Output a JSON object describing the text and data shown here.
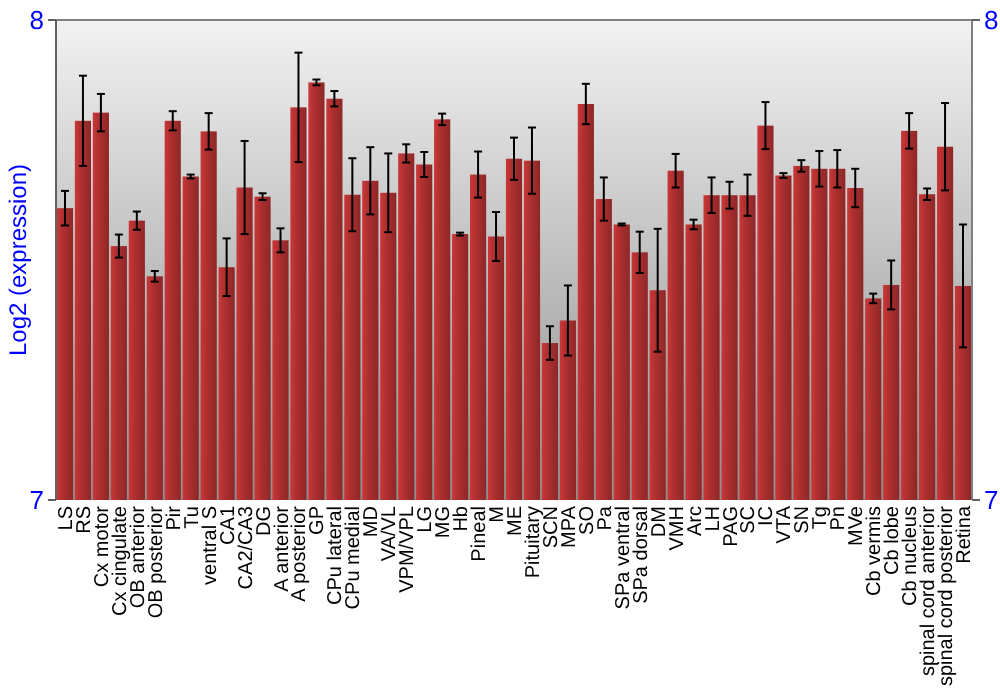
{
  "chart_data": {
    "type": "bar",
    "ylabel": "Log2 (expression)",
    "categories": [
      "LS",
      "RS",
      "Cx motor",
      "Cx cingulate",
      "OB anterior",
      "OB posterior",
      "Pir",
      "Tu",
      "ventral S",
      "CA1",
      "CA2/CA3",
      "DG",
      "A anterior",
      "A posterior",
      "GP",
      "CPu lateral",
      "CPu medial",
      "MD",
      "VA/VL",
      "VPM/VPL",
      "LG",
      "MG",
      "Hb",
      "Pineal",
      "M",
      "ME",
      "Pituitary",
      "SCN",
      "MPA",
      "SO",
      "Pa",
      "SPa ventral",
      "SPa dorsal",
      "DM",
      "VMH",
      "Arc",
      "LH",
      "PAG",
      "SC",
      "IC",
      "VTA",
      "SN",
      "Tg",
      "Pn",
      "MVe",
      "Cb vermis",
      "Cb lobe",
      "Cb nucleus",
      "spinal cord anterior",
      "spinal cord posterior",
      "Retina"
    ],
    "values": [
      7.608,
      7.79,
      7.807,
      7.529,
      7.582,
      7.466,
      7.79,
      7.674,
      7.768,
      7.485,
      7.651,
      7.632,
      7.541,
      7.818,
      7.87,
      7.836,
      7.636,
      7.665,
      7.64,
      7.722,
      7.699,
      7.793,
      7.554,
      7.678,
      7.549,
      7.711,
      7.707,
      7.327,
      7.374,
      7.825,
      7.627,
      7.574,
      7.516,
      7.437,
      7.686,
      7.574,
      7.635,
      7.635,
      7.635,
      7.78,
      7.676,
      7.696,
      7.69,
      7.69,
      7.65,
      7.42,
      7.448,
      7.769,
      7.637,
      7.736,
      7.446
    ],
    "errors": [
      0.036,
      0.094,
      0.039,
      0.024,
      0.019,
      0.011,
      0.02,
      0.004,
      0.038,
      0.06,
      0.097,
      0.007,
      0.025,
      0.114,
      0.006,
      0.016,
      0.076,
      0.07,
      0.082,
      0.019,
      0.026,
      0.012,
      0.003,
      0.048,
      0.051,
      0.044,
      0.069,
      0.035,
      0.073,
      0.042,
      0.045,
      0.002,
      0.043,
      0.128,
      0.035,
      0.01,
      0.037,
      0.028,
      0.043,
      0.049,
      0.005,
      0.012,
      0.037,
      0.039,
      0.04,
      0.01,
      0.051,
      0.037,
      0.012,
      0.091,
      0.128
    ],
    "color": "#b03030",
    "ylim": [
      7,
      8
    ],
    "yticks": [
      7,
      8
    ],
    "y2lim": [
      7,
      8
    ],
    "y2ticks": [
      7,
      8
    ]
  }
}
